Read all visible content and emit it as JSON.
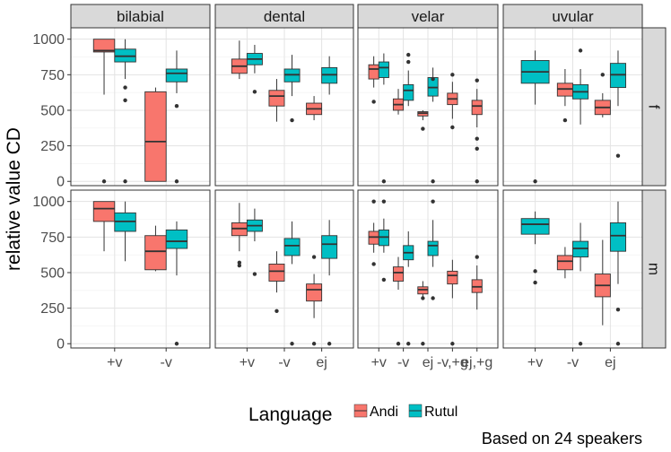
{
  "chart_data": {
    "type": "boxplot",
    "ylabel": "relative value CD",
    "y_ticks": [
      0,
      250,
      500,
      750,
      1000
    ],
    "ylim": [
      -30,
      1080
    ],
    "legend": {
      "title": "Language",
      "placement": "bottom",
      "entries": [
        {
          "name": "Andi",
          "color": "#f8766d"
        },
        {
          "name": "Rutul",
          "color": "#00bfc4"
        }
      ]
    },
    "caption": "Based on 24 speakers",
    "columns": [
      "bilabial",
      "dental",
      "velar",
      "uvular"
    ],
    "rows": [
      "f",
      "m"
    ],
    "x_categories": {
      "bilabial": [
        "+v",
        "-v"
      ],
      "dental": [
        "+v",
        "-v",
        "ej"
      ],
      "velar": [
        "+v",
        "-v",
        "ej",
        "-v,+g",
        "ej,+g"
      ],
      "uvular": [
        "+v",
        "-v",
        "ej"
      ]
    },
    "panels": [
      {
        "row": "f",
        "col": "bilabial",
        "boxes": [
          {
            "cat": "+v",
            "lang": "Andi",
            "min": 610,
            "q1": 910,
            "med": 920,
            "q3": 1000,
            "max": 1000,
            "out": [
              0
            ]
          },
          {
            "cat": "+v",
            "lang": "Rutul",
            "min": 720,
            "q1": 840,
            "med": 880,
            "q3": 930,
            "max": 1000,
            "out": [
              660,
              570,
              0
            ]
          },
          {
            "cat": "-v",
            "lang": "Andi",
            "min": 0,
            "q1": 0,
            "med": 280,
            "q3": 630,
            "max": 660,
            "out": []
          },
          {
            "cat": "-v",
            "lang": "Rutul",
            "min": 620,
            "q1": 700,
            "med": 760,
            "q3": 790,
            "max": 920,
            "out": [
              530,
              0
            ]
          }
        ]
      },
      {
        "row": "f",
        "col": "dental",
        "boxes": [
          {
            "cat": "+v",
            "lang": "Andi",
            "min": 720,
            "q1": 760,
            "med": 810,
            "q3": 860,
            "max": 990,
            "out": []
          },
          {
            "cat": "+v",
            "lang": "Rutul",
            "min": 760,
            "q1": 820,
            "med": 860,
            "q3": 900,
            "max": 960,
            "out": [
              630
            ]
          },
          {
            "cat": "-v",
            "lang": "Andi",
            "min": 420,
            "q1": 530,
            "med": 600,
            "q3": 640,
            "max": 720,
            "out": []
          },
          {
            "cat": "-v",
            "lang": "Rutul",
            "min": 600,
            "q1": 700,
            "med": 750,
            "q3": 790,
            "max": 890,
            "out": [
              430
            ]
          },
          {
            "cat": "ej",
            "lang": "Andi",
            "min": 430,
            "q1": 470,
            "med": 510,
            "q3": 550,
            "max": 600,
            "out": []
          },
          {
            "cat": "ej",
            "lang": "Rutul",
            "min": 610,
            "q1": 690,
            "med": 750,
            "q3": 800,
            "max": 880,
            "out": []
          }
        ]
      },
      {
        "row": "f",
        "col": "velar",
        "boxes": [
          {
            "cat": "+v",
            "lang": "Andi",
            "min": 660,
            "q1": 720,
            "med": 790,
            "q3": 820,
            "max": 880,
            "out": [
              560
            ]
          },
          {
            "cat": "+v",
            "lang": "Rutul",
            "min": 680,
            "q1": 730,
            "med": 800,
            "q3": 840,
            "max": 900,
            "out": [
              0
            ]
          },
          {
            "cat": "-v",
            "lang": "Andi",
            "min": 470,
            "q1": 500,
            "med": 540,
            "q3": 580,
            "max": 650,
            "out": []
          },
          {
            "cat": "-v",
            "lang": "Rutul",
            "min": 530,
            "q1": 570,
            "med": 640,
            "q3": 680,
            "max": 780,
            "out": [
              890,
              840
            ]
          },
          {
            "cat": "ej",
            "lang": "Andi",
            "min": 430,
            "q1": 460,
            "med": 480,
            "q3": 490,
            "max": 500,
            "out": [
              370
            ]
          },
          {
            "cat": "ej",
            "lang": "Rutul",
            "min": 560,
            "q1": 600,
            "med": 660,
            "q3": 730,
            "max": 800,
            "out": [
              720,
              0
            ]
          },
          {
            "cat": "-v,+g",
            "lang": "Andi",
            "min": 440,
            "q1": 540,
            "med": 580,
            "q3": 620,
            "max": 700,
            "out": [
              750,
              380
            ]
          },
          {
            "cat": "ej,+g",
            "lang": "Andi",
            "min": 380,
            "q1": 470,
            "med": 530,
            "q3": 570,
            "max": 650,
            "out": [
              710,
              300,
              230,
              0
            ]
          }
        ]
      },
      {
        "row": "f",
        "col": "uvular",
        "boxes": [
          {
            "cat": "+v",
            "lang": "Rutul",
            "min": 540,
            "q1": 690,
            "med": 770,
            "q3": 850,
            "max": 920,
            "out": [
              0
            ]
          },
          {
            "cat": "-v",
            "lang": "Andi",
            "min": 530,
            "q1": 600,
            "med": 650,
            "q3": 690,
            "max": 790,
            "out": [
              430
            ]
          },
          {
            "cat": "-v",
            "lang": "Rutul",
            "min": 400,
            "q1": 580,
            "med": 630,
            "q3": 680,
            "max": 790,
            "out": [
              920
            ]
          },
          {
            "cat": "ej",
            "lang": "Andi",
            "min": 450,
            "q1": 470,
            "med": 520,
            "q3": 570,
            "max": 620,
            "out": [
              750
            ]
          },
          {
            "cat": "ej",
            "lang": "Rutul",
            "min": 530,
            "q1": 660,
            "med": 750,
            "q3": 830,
            "max": 920,
            "out": [
              180
            ]
          }
        ]
      },
      {
        "row": "m",
        "col": "bilabial",
        "boxes": [
          {
            "cat": "+v",
            "lang": "Andi",
            "min": 650,
            "q1": 860,
            "med": 950,
            "q3": 1000,
            "max": 1000,
            "out": []
          },
          {
            "cat": "+v",
            "lang": "Rutul",
            "min": 580,
            "q1": 790,
            "med": 860,
            "q3": 920,
            "max": 1000,
            "out": []
          },
          {
            "cat": "-v",
            "lang": "Andi",
            "min": 510,
            "q1": 520,
            "med": 650,
            "q3": 760,
            "max": 830,
            "out": []
          },
          {
            "cat": "-v",
            "lang": "Rutul",
            "min": 480,
            "q1": 670,
            "med": 720,
            "q3": 800,
            "max": 860,
            "out": [
              0
            ]
          }
        ]
      },
      {
        "row": "m",
        "col": "dental",
        "boxes": [
          {
            "cat": "+v",
            "lang": "Andi",
            "min": 650,
            "q1": 760,
            "med": 810,
            "q3": 850,
            "max": 990,
            "out": [
              570,
              550
            ]
          },
          {
            "cat": "+v",
            "lang": "Rutul",
            "min": 720,
            "q1": 790,
            "med": 830,
            "q3": 870,
            "max": 950,
            "out": [
              490
            ]
          },
          {
            "cat": "-v",
            "lang": "Andi",
            "min": 360,
            "q1": 440,
            "med": 510,
            "q3": 560,
            "max": 650,
            "out": [
              230
            ]
          },
          {
            "cat": "-v",
            "lang": "Rutul",
            "min": 560,
            "q1": 620,
            "med": 690,
            "q3": 740,
            "max": 860,
            "out": [
              0
            ]
          },
          {
            "cat": "ej",
            "lang": "Andi",
            "min": 180,
            "q1": 300,
            "med": 380,
            "q3": 420,
            "max": 490,
            "out": [
              610,
              0
            ]
          },
          {
            "cat": "ej",
            "lang": "Rutul",
            "min": 480,
            "q1": 600,
            "med": 700,
            "q3": 760,
            "max": 870,
            "out": [
              0
            ]
          }
        ]
      },
      {
        "row": "m",
        "col": "velar",
        "boxes": [
          {
            "cat": "+v",
            "lang": "Andi",
            "min": 640,
            "q1": 700,
            "med": 750,
            "q3": 790,
            "max": 850,
            "out": [
              560,
              1000
            ]
          },
          {
            "cat": "+v",
            "lang": "Rutul",
            "min": 640,
            "q1": 690,
            "med": 750,
            "q3": 800,
            "max": 880,
            "out": [
              1000,
              450
            ]
          },
          {
            "cat": "-v",
            "lang": "Andi",
            "min": 380,
            "q1": 440,
            "med": 500,
            "q3": 540,
            "max": 610,
            "out": [
              0
            ]
          },
          {
            "cat": "-v",
            "lang": "Rutul",
            "min": 540,
            "q1": 590,
            "med": 640,
            "q3": 690,
            "max": 790,
            "out": [
              0
            ]
          },
          {
            "cat": "ej",
            "lang": "Andi",
            "min": 330,
            "q1": 350,
            "med": 380,
            "q3": 400,
            "max": 440,
            "out": [
              320,
              0
            ]
          },
          {
            "cat": "ej",
            "lang": "Rutul",
            "min": 540,
            "q1": 620,
            "med": 690,
            "q3": 720,
            "max": 870,
            "out": [
              1000,
              320
            ]
          },
          {
            "cat": "-v,+g",
            "lang": "Andi",
            "min": 320,
            "q1": 420,
            "med": 480,
            "q3": 510,
            "max": 590,
            "out": [
              0
            ]
          },
          {
            "cat": "ej,+g",
            "lang": "Andi",
            "min": 240,
            "q1": 360,
            "med": 400,
            "q3": 450,
            "max": 550,
            "out": [
              610
            ]
          }
        ]
      },
      {
        "row": "m",
        "col": "uvular",
        "boxes": [
          {
            "cat": "+v",
            "lang": "Rutul",
            "min": 700,
            "q1": 770,
            "med": 840,
            "q3": 880,
            "max": 930,
            "out": [
              510,
              430
            ]
          },
          {
            "cat": "-v",
            "lang": "Andi",
            "min": 460,
            "q1": 520,
            "med": 580,
            "q3": 620,
            "max": 680,
            "out": []
          },
          {
            "cat": "-v",
            "lang": "Rutul",
            "min": 510,
            "q1": 610,
            "med": 670,
            "q3": 720,
            "max": 850,
            "out": [
              0
            ]
          },
          {
            "cat": "ej",
            "lang": "Andi",
            "min": 130,
            "q1": 330,
            "med": 410,
            "q3": 490,
            "max": 730,
            "out": []
          },
          {
            "cat": "ej",
            "lang": "Rutul",
            "min": 420,
            "q1": 650,
            "med": 760,
            "q3": 850,
            "max": 1000,
            "out": [
              240,
              0
            ]
          }
        ]
      }
    ]
  }
}
